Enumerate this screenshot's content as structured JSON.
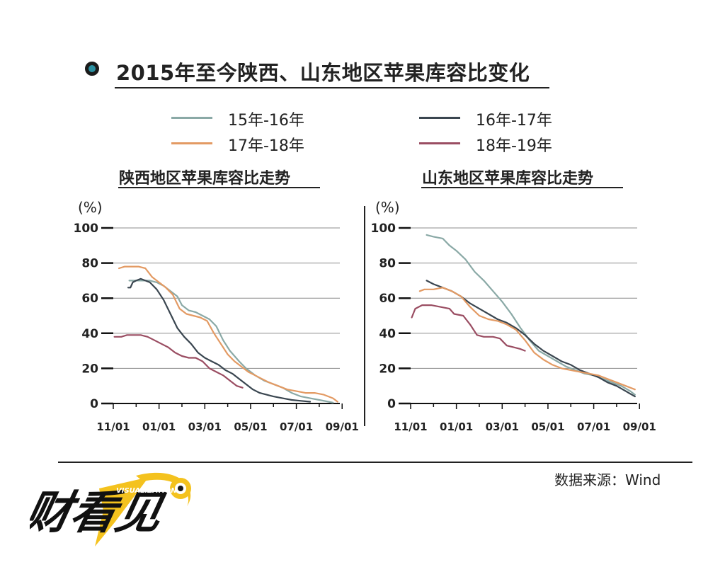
{
  "title": "2015年至今陕西、山东地区苹果库容比变化",
  "legend": [
    {
      "name": "15年-16年",
      "color": "#8aa9a6"
    },
    {
      "name": "16年-17年",
      "color": "#3a4650"
    },
    {
      "name": "17年-18年",
      "color": "#e39a63"
    },
    {
      "name": "18年-19年",
      "color": "#9a4d62"
    }
  ],
  "source": "数据来源：Wind",
  "logo_text": "财看见 VISUALIZATION",
  "chart_data": [
    {
      "type": "line",
      "title": "陕西地区苹果库容比走势",
      "ylabel": "(%)",
      "ylim": [
        0,
        100
      ],
      "yticks": [
        "0",
        "20",
        "40",
        "60",
        "80",
        "100"
      ],
      "xlim": [
        0,
        9.9
      ],
      "xticks": [
        {
          "v": 0,
          "label": "11/01"
        },
        {
          "v": 2,
          "label": "01/01"
        },
        {
          "v": 4,
          "label": "03/01"
        },
        {
          "v": 6,
          "label": "05/01"
        },
        {
          "v": 8,
          "label": "07/01"
        },
        {
          "v": 10,
          "label": "09/01"
        }
      ],
      "grid": true,
      "series": [
        {
          "name": "15年-16年",
          "color": "#8aa9a6",
          "points": [
            [
              0.7,
              70
            ],
            [
              1.0,
              70
            ],
            [
              1.3,
              70
            ],
            [
              1.6,
              70
            ],
            [
              1.9,
              69
            ],
            [
              2.2,
              67
            ],
            [
              2.5,
              64
            ],
            [
              2.8,
              61
            ],
            [
              3.0,
              56
            ],
            [
              3.3,
              53
            ],
            [
              3.6,
              52
            ],
            [
              3.9,
              50
            ],
            [
              4.2,
              48
            ],
            [
              4.5,
              44
            ],
            [
              4.8,
              36
            ],
            [
              5.1,
              30
            ],
            [
              5.5,
              24
            ],
            [
              5.8,
              20
            ],
            [
              6.2,
              16
            ],
            [
              6.6,
              13
            ],
            [
              7.0,
              11
            ],
            [
              7.4,
              9
            ],
            [
              7.8,
              6
            ],
            [
              8.2,
              4
            ],
            [
              8.6,
              3
            ],
            [
              9.0,
              2
            ],
            [
              9.4,
              1
            ],
            [
              9.6,
              0.5
            ]
          ]
        },
        {
          "name": "16年-17年",
          "color": "#3a4650",
          "points": [
            [
              0.65,
              66
            ],
            [
              0.75,
              66
            ],
            [
              0.85,
              69
            ],
            [
              1.0,
              70
            ],
            [
              1.2,
              71
            ],
            [
              1.4,
              70
            ],
            [
              1.6,
              69
            ],
            [
              1.9,
              65
            ],
            [
              2.2,
              59
            ],
            [
              2.5,
              51
            ],
            [
              2.8,
              43
            ],
            [
              3.1,
              38
            ],
            [
              3.4,
              34
            ],
            [
              3.7,
              29
            ],
            [
              4.0,
              26
            ],
            [
              4.3,
              24
            ],
            [
              4.6,
              22
            ],
            [
              4.9,
              19
            ],
            [
              5.2,
              17
            ],
            [
              5.5,
              14
            ],
            [
              5.8,
              11
            ],
            [
              6.1,
              8
            ],
            [
              6.4,
              6
            ],
            [
              6.7,
              5
            ],
            [
              7.0,
              4
            ],
            [
              7.4,
              3
            ],
            [
              7.8,
              2
            ],
            [
              8.2,
              1.5
            ],
            [
              8.6,
              1
            ]
          ]
        },
        {
          "name": "17年-18年",
          "color": "#e39a63",
          "points": [
            [
              0.25,
              77
            ],
            [
              0.5,
              78
            ],
            [
              0.8,
              78
            ],
            [
              1.1,
              78
            ],
            [
              1.4,
              77
            ],
            [
              1.7,
              72
            ],
            [
              2.0,
              69
            ],
            [
              2.3,
              66
            ],
            [
              2.6,
              62
            ],
            [
              2.9,
              54
            ],
            [
              3.2,
              51
            ],
            [
              3.5,
              50
            ],
            [
              3.8,
              49
            ],
            [
              4.1,
              47
            ],
            [
              4.4,
              40
            ],
            [
              4.7,
              34
            ],
            [
              5.0,
              28
            ],
            [
              5.3,
              24
            ],
            [
              5.6,
              21
            ],
            [
              5.9,
              18
            ],
            [
              6.2,
              16
            ],
            [
              6.5,
              14
            ],
            [
              6.8,
              12
            ],
            [
              7.2,
              10
            ],
            [
              7.6,
              8
            ],
            [
              8.0,
              7
            ],
            [
              8.4,
              6
            ],
            [
              8.8,
              6
            ],
            [
              9.2,
              5
            ],
            [
              9.6,
              3
            ],
            [
              9.8,
              1
            ]
          ]
        },
        {
          "name": "18年-19年",
          "color": "#9a4d62",
          "points": [
            [
              0.05,
              38
            ],
            [
              0.35,
              38
            ],
            [
              0.6,
              39
            ],
            [
              0.9,
              39
            ],
            [
              1.2,
              39
            ],
            [
              1.5,
              38
            ],
            [
              1.8,
              36
            ],
            [
              2.1,
              34
            ],
            [
              2.4,
              32
            ],
            [
              2.7,
              29
            ],
            [
              3.0,
              27
            ],
            [
              3.3,
              26
            ],
            [
              3.6,
              26
            ],
            [
              3.9,
              24
            ],
            [
              4.2,
              20
            ],
            [
              4.5,
              18
            ],
            [
              4.8,
              16
            ],
            [
              5.1,
              13
            ],
            [
              5.4,
              10
            ],
            [
              5.65,
              9
            ]
          ]
        }
      ]
    },
    {
      "type": "line",
      "title": "山东地区苹果库容比走势",
      "ylabel": "(%)",
      "ylim": [
        0,
        100
      ],
      "yticks": [
        "0",
        "20",
        "40",
        "60",
        "80",
        "100"
      ],
      "xlim": [
        0,
        9.9
      ],
      "xticks": [
        {
          "v": 0,
          "label": "11/01"
        },
        {
          "v": 2,
          "label": "01/01"
        },
        {
          "v": 4,
          "label": "03/01"
        },
        {
          "v": 6,
          "label": "05/01"
        },
        {
          "v": 8,
          "label": "07/01"
        },
        {
          "v": 10,
          "label": "09/01"
        }
      ],
      "grid": true,
      "series": [
        {
          "name": "15年-16年",
          "color": "#8aa9a6",
          "points": [
            [
              0.7,
              96
            ],
            [
              1.0,
              95
            ],
            [
              1.4,
              94
            ],
            [
              1.7,
              90
            ],
            [
              2.0,
              87
            ],
            [
              2.4,
              82
            ],
            [
              2.8,
              75
            ],
            [
              3.2,
              70
            ],
            [
              3.6,
              64
            ],
            [
              4.0,
              58
            ],
            [
              4.4,
              51
            ],
            [
              4.8,
              43
            ],
            [
              5.2,
              36
            ],
            [
              5.6,
              30
            ],
            [
              6.0,
              27
            ],
            [
              6.4,
              24
            ],
            [
              6.8,
              21
            ],
            [
              7.2,
              19
            ],
            [
              7.6,
              17
            ],
            [
              8.0,
              16
            ],
            [
              8.4,
              14
            ],
            [
              8.8,
              12
            ],
            [
              9.2,
              10
            ],
            [
              9.6,
              7
            ],
            [
              9.8,
              5
            ]
          ]
        },
        {
          "name": "16年-17年",
          "color": "#3a4650",
          "points": [
            [
              0.7,
              70
            ],
            [
              1.0,
              68
            ],
            [
              1.4,
              66
            ],
            [
              1.8,
              64
            ],
            [
              2.2,
              61
            ],
            [
              2.6,
              57
            ],
            [
              3.0,
              54
            ],
            [
              3.4,
              51
            ],
            [
              3.8,
              48
            ],
            [
              4.2,
              46
            ],
            [
              4.6,
              43
            ],
            [
              5.0,
              39
            ],
            [
              5.4,
              34
            ],
            [
              5.8,
              30
            ],
            [
              6.2,
              27
            ],
            [
              6.6,
              24
            ],
            [
              7.0,
              22
            ],
            [
              7.4,
              19
            ],
            [
              7.8,
              17
            ],
            [
              8.2,
              15
            ],
            [
              8.6,
              12
            ],
            [
              9.0,
              10
            ],
            [
              9.4,
              7
            ],
            [
              9.8,
              4
            ]
          ]
        },
        {
          "name": "17年-18年",
          "color": "#e39a63",
          "points": [
            [
              0.4,
              64
            ],
            [
              0.6,
              65
            ],
            [
              1.0,
              65
            ],
            [
              1.4,
              66
            ],
            [
              1.8,
              64
            ],
            [
              2.2,
              61
            ],
            [
              2.6,
              55
            ],
            [
              3.0,
              50
            ],
            [
              3.4,
              48
            ],
            [
              3.8,
              47
            ],
            [
              4.2,
              45
            ],
            [
              4.6,
              42
            ],
            [
              5.0,
              36
            ],
            [
              5.4,
              29
            ],
            [
              5.8,
              25
            ],
            [
              6.2,
              22
            ],
            [
              6.6,
              20
            ],
            [
              7.0,
              19
            ],
            [
              7.4,
              18
            ],
            [
              7.8,
              17
            ],
            [
              8.2,
              16
            ],
            [
              8.6,
              14
            ],
            [
              9.0,
              12
            ],
            [
              9.4,
              10
            ],
            [
              9.8,
              8
            ]
          ]
        },
        {
          "name": "18年-19年",
          "color": "#9a4d62",
          "points": [
            [
              0.05,
              49
            ],
            [
              0.2,
              54
            ],
            [
              0.5,
              56
            ],
            [
              0.9,
              56
            ],
            [
              1.3,
              55
            ],
            [
              1.7,
              54
            ],
            [
              1.9,
              51
            ],
            [
              2.3,
              50
            ],
            [
              2.6,
              45
            ],
            [
              2.9,
              39
            ],
            [
              3.2,
              38
            ],
            [
              3.6,
              38
            ],
            [
              3.9,
              37
            ],
            [
              4.2,
              33
            ],
            [
              4.5,
              32
            ],
            [
              4.8,
              31
            ],
            [
              5.0,
              30
            ]
          ]
        }
      ]
    }
  ]
}
